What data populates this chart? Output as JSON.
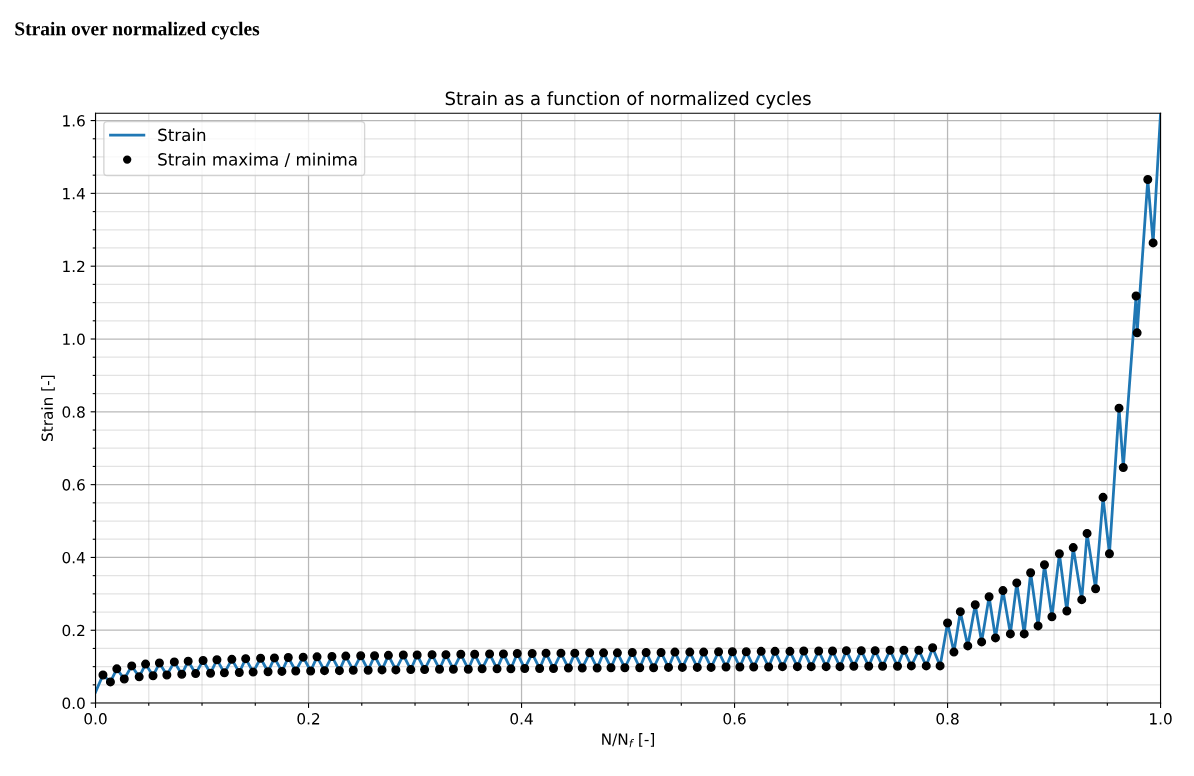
{
  "chart_data": {
    "type": "line",
    "title": "Strain over normalized cycles",
    "subtitle": "Strain as a function of normalized cycles",
    "xlabel": "N/N$_{f}$ [-]",
    "ylabel": "Strain [-]",
    "xlim": [
      0,
      1.0
    ],
    "ylim": [
      0,
      1.62
    ],
    "xticks": [
      {
        "value": 0.0,
        "label": "0.0"
      },
      {
        "value": 0.05,
        "label": null
      },
      {
        "value": 0.1,
        "label": null
      },
      {
        "value": 0.15,
        "label": null
      },
      {
        "value": 0.2,
        "label": "0.2"
      },
      {
        "value": 0.25,
        "label": null
      },
      {
        "value": 0.3,
        "label": null
      },
      {
        "value": 0.35,
        "label": null
      },
      {
        "value": 0.4,
        "label": "0.4"
      },
      {
        "value": 0.45,
        "label": null
      },
      {
        "value": 0.5,
        "label": null
      },
      {
        "value": 0.55,
        "label": null
      },
      {
        "value": 0.6,
        "label": "0.6"
      },
      {
        "value": 0.65,
        "label": null
      },
      {
        "value": 0.7,
        "label": null
      },
      {
        "value": 0.75,
        "label": null
      },
      {
        "value": 0.8,
        "label": "0.8"
      },
      {
        "value": 0.85,
        "label": null
      },
      {
        "value": 0.9,
        "label": null
      },
      {
        "value": 0.95,
        "label": null
      },
      {
        "value": 1.0,
        "label": "1.0"
      }
    ],
    "yticks": [
      {
        "value": 0.0,
        "label": "0.0"
      },
      {
        "value": 0.05,
        "label": null
      },
      {
        "value": 0.1,
        "label": null
      },
      {
        "value": 0.15,
        "label": null
      },
      {
        "value": 0.2,
        "label": "0.2"
      },
      {
        "value": 0.25,
        "label": null
      },
      {
        "value": 0.3,
        "label": null
      },
      {
        "value": 0.35,
        "label": null
      },
      {
        "value": 0.4,
        "label": "0.4"
      },
      {
        "value": 0.45,
        "label": null
      },
      {
        "value": 0.5,
        "label": null
      },
      {
        "value": 0.55,
        "label": null
      },
      {
        "value": 0.6,
        "label": "0.6"
      },
      {
        "value": 0.65,
        "label": null
      },
      {
        "value": 0.7,
        "label": null
      },
      {
        "value": 0.75,
        "label": null
      },
      {
        "value": 0.8,
        "label": "0.8"
      },
      {
        "value": 0.85,
        "label": null
      },
      {
        "value": 0.9,
        "label": null
      },
      {
        "value": 0.95,
        "label": null
      },
      {
        "value": 1.0,
        "label": "1.0"
      },
      {
        "value": 1.05,
        "label": null
      },
      {
        "value": 1.1,
        "label": null
      },
      {
        "value": 1.15,
        "label": null
      },
      {
        "value": 1.2,
        "label": "1.2"
      },
      {
        "value": 1.25,
        "label": null
      },
      {
        "value": 1.3,
        "label": null
      },
      {
        "value": 1.35,
        "label": null
      },
      {
        "value": 1.4,
        "label": "1.4"
      },
      {
        "value": 1.45,
        "label": null
      },
      {
        "value": 1.5,
        "label": null
      },
      {
        "value": 1.55,
        "label": null
      },
      {
        "value": 1.6,
        "label": "1.6"
      }
    ],
    "grid": true,
    "legend": "top left",
    "series": [
      {
        "name": "Strain",
        "color": "#1f77b4",
        "marker": "none",
        "line_style": "solid",
        "x": [
          0.0,
          0.007,
          0.014,
          0.02,
          0.027,
          0.034,
          0.041,
          0.047,
          0.054,
          0.06,
          0.067,
          0.074,
          0.081,
          0.087,
          0.094,
          0.101,
          0.108,
          0.114,
          0.121,
          0.128,
          0.135,
          0.141,
          0.148,
          0.155,
          0.162,
          0.168,
          0.175,
          0.181,
          0.188,
          0.195,
          0.202,
          0.208,
          0.215,
          0.222,
          0.229,
          0.235,
          0.242,
          0.249,
          0.256,
          0.262,
          0.269,
          0.275,
          0.282,
          0.289,
          0.296,
          0.302,
          0.309,
          0.316,
          0.323,
          0.329,
          0.336,
          0.343,
          0.35,
          0.356,
          0.363,
          0.37,
          0.377,
          0.383,
          0.39,
          0.396,
          0.403,
          0.41,
          0.417,
          0.423,
          0.43,
          0.437,
          0.444,
          0.45,
          0.457,
          0.464,
          0.471,
          0.477,
          0.484,
          0.49,
          0.497,
          0.504,
          0.511,
          0.517,
          0.524,
          0.531,
          0.538,
          0.544,
          0.551,
          0.558,
          0.565,
          0.571,
          0.578,
          0.585,
          0.592,
          0.598,
          0.605,
          0.611,
          0.618,
          0.625,
          0.632,
          0.638,
          0.645,
          0.652,
          0.659,
          0.665,
          0.672,
          0.679,
          0.686,
          0.692,
          0.699,
          0.705,
          0.712,
          0.719,
          0.726,
          0.732,
          0.739,
          0.746,
          0.753,
          0.759,
          0.766,
          0.773,
          0.78,
          0.786,
          0.793,
          0.8,
          0.806,
          0.812,
          0.819,
          0.826,
          0.832,
          0.839,
          0.845,
          0.852,
          0.859,
          0.865,
          0.872,
          0.878,
          0.885,
          0.891,
          0.898,
          0.905,
          0.912,
          0.918,
          0.926,
          0.931,
          0.939,
          0.946,
          0.952,
          0.961,
          0.965,
          0.977,
          0.978,
          0.988,
          0.993,
          1.0
        ],
        "values": [
          0.03,
          0.077,
          0.058,
          0.094,
          0.066,
          0.102,
          0.072,
          0.107,
          0.075,
          0.11,
          0.077,
          0.113,
          0.079,
          0.115,
          0.081,
          0.117,
          0.082,
          0.119,
          0.083,
          0.12,
          0.084,
          0.122,
          0.085,
          0.123,
          0.086,
          0.124,
          0.087,
          0.125,
          0.088,
          0.126,
          0.088,
          0.127,
          0.089,
          0.128,
          0.089,
          0.129,
          0.09,
          0.13,
          0.09,
          0.13,
          0.091,
          0.131,
          0.091,
          0.132,
          0.092,
          0.132,
          0.092,
          0.133,
          0.093,
          0.133,
          0.093,
          0.134,
          0.093,
          0.134,
          0.094,
          0.135,
          0.094,
          0.135,
          0.094,
          0.136,
          0.095,
          0.136,
          0.095,
          0.137,
          0.095,
          0.137,
          0.096,
          0.137,
          0.096,
          0.138,
          0.096,
          0.138,
          0.097,
          0.138,
          0.097,
          0.139,
          0.097,
          0.139,
          0.097,
          0.139,
          0.098,
          0.14,
          0.098,
          0.14,
          0.098,
          0.14,
          0.098,
          0.141,
          0.099,
          0.141,
          0.099,
          0.141,
          0.099,
          0.142,
          0.099,
          0.142,
          0.1,
          0.142,
          0.1,
          0.143,
          0.1,
          0.143,
          0.1,
          0.143,
          0.1,
          0.144,
          0.101,
          0.144,
          0.101,
          0.144,
          0.101,
          0.145,
          0.101,
          0.145,
          0.102,
          0.145,
          0.102,
          0.152,
          0.102,
          0.22,
          0.14,
          0.251,
          0.157,
          0.27,
          0.168,
          0.292,
          0.179,
          0.309,
          0.19,
          0.33,
          0.19,
          0.358,
          0.212,
          0.38,
          0.237,
          0.41,
          0.253,
          0.427,
          0.284,
          0.466,
          0.314,
          0.565,
          0.41,
          0.81,
          0.647,
          1.118,
          1.017,
          1.438,
          1.264,
          1.62
        ]
      },
      {
        "name": "Strain maxima / minima",
        "type": "scatter",
        "color": "#000000",
        "marker": "circle",
        "x": [
          0.007,
          0.014,
          0.02,
          0.027,
          0.034,
          0.041,
          0.047,
          0.054,
          0.06,
          0.067,
          0.074,
          0.081,
          0.087,
          0.094,
          0.101,
          0.108,
          0.114,
          0.121,
          0.128,
          0.135,
          0.141,
          0.148,
          0.155,
          0.162,
          0.168,
          0.175,
          0.181,
          0.188,
          0.195,
          0.202,
          0.208,
          0.215,
          0.222,
          0.229,
          0.235,
          0.242,
          0.249,
          0.256,
          0.262,
          0.269,
          0.275,
          0.282,
          0.289,
          0.296,
          0.302,
          0.309,
          0.316,
          0.323,
          0.329,
          0.336,
          0.343,
          0.35,
          0.356,
          0.363,
          0.37,
          0.377,
          0.383,
          0.39,
          0.396,
          0.403,
          0.41,
          0.417,
          0.423,
          0.43,
          0.437,
          0.444,
          0.45,
          0.457,
          0.464,
          0.471,
          0.477,
          0.484,
          0.49,
          0.497,
          0.504,
          0.511,
          0.517,
          0.524,
          0.531,
          0.538,
          0.544,
          0.551,
          0.558,
          0.565,
          0.571,
          0.578,
          0.585,
          0.592,
          0.598,
          0.605,
          0.611,
          0.618,
          0.625,
          0.632,
          0.638,
          0.645,
          0.652,
          0.659,
          0.665,
          0.672,
          0.679,
          0.686,
          0.692,
          0.699,
          0.705,
          0.712,
          0.719,
          0.726,
          0.732,
          0.739,
          0.746,
          0.753,
          0.759,
          0.766,
          0.773,
          0.78,
          0.786,
          0.793,
          0.8,
          0.806,
          0.812,
          0.819,
          0.826,
          0.832,
          0.839,
          0.845,
          0.852,
          0.859,
          0.865,
          0.872,
          0.878,
          0.885,
          0.891,
          0.898,
          0.905,
          0.912,
          0.918,
          0.926,
          0.931,
          0.939,
          0.946,
          0.952,
          0.961,
          0.965,
          0.977,
          0.978,
          0.988,
          0.993
        ],
        "values": [
          0.077,
          0.058,
          0.094,
          0.066,
          0.102,
          0.072,
          0.107,
          0.075,
          0.11,
          0.077,
          0.113,
          0.079,
          0.115,
          0.081,
          0.117,
          0.082,
          0.119,
          0.083,
          0.12,
          0.084,
          0.122,
          0.085,
          0.123,
          0.086,
          0.124,
          0.087,
          0.125,
          0.088,
          0.126,
          0.088,
          0.127,
          0.089,
          0.128,
          0.089,
          0.129,
          0.09,
          0.13,
          0.09,
          0.13,
          0.091,
          0.131,
          0.091,
          0.132,
          0.092,
          0.132,
          0.092,
          0.133,
          0.093,
          0.133,
          0.093,
          0.134,
          0.093,
          0.134,
          0.094,
          0.135,
          0.094,
          0.135,
          0.094,
          0.136,
          0.095,
          0.136,
          0.095,
          0.137,
          0.095,
          0.137,
          0.096,
          0.137,
          0.096,
          0.138,
          0.096,
          0.138,
          0.097,
          0.138,
          0.097,
          0.139,
          0.097,
          0.139,
          0.097,
          0.139,
          0.098,
          0.14,
          0.098,
          0.14,
          0.098,
          0.14,
          0.098,
          0.141,
          0.099,
          0.141,
          0.099,
          0.141,
          0.099,
          0.142,
          0.099,
          0.142,
          0.1,
          0.142,
          0.1,
          0.143,
          0.1,
          0.143,
          0.1,
          0.143,
          0.1,
          0.144,
          0.101,
          0.144,
          0.101,
          0.144,
          0.101,
          0.145,
          0.101,
          0.145,
          0.102,
          0.145,
          0.102,
          0.152,
          0.102,
          0.22,
          0.14,
          0.251,
          0.157,
          0.27,
          0.168,
          0.292,
          0.179,
          0.309,
          0.19,
          0.33,
          0.19,
          0.358,
          0.212,
          0.38,
          0.237,
          0.41,
          0.253,
          0.427,
          0.284,
          0.466,
          0.314,
          0.565,
          0.41,
          0.81,
          0.647,
          1.118,
          1.017,
          1.438,
          1.264
        ]
      }
    ]
  }
}
